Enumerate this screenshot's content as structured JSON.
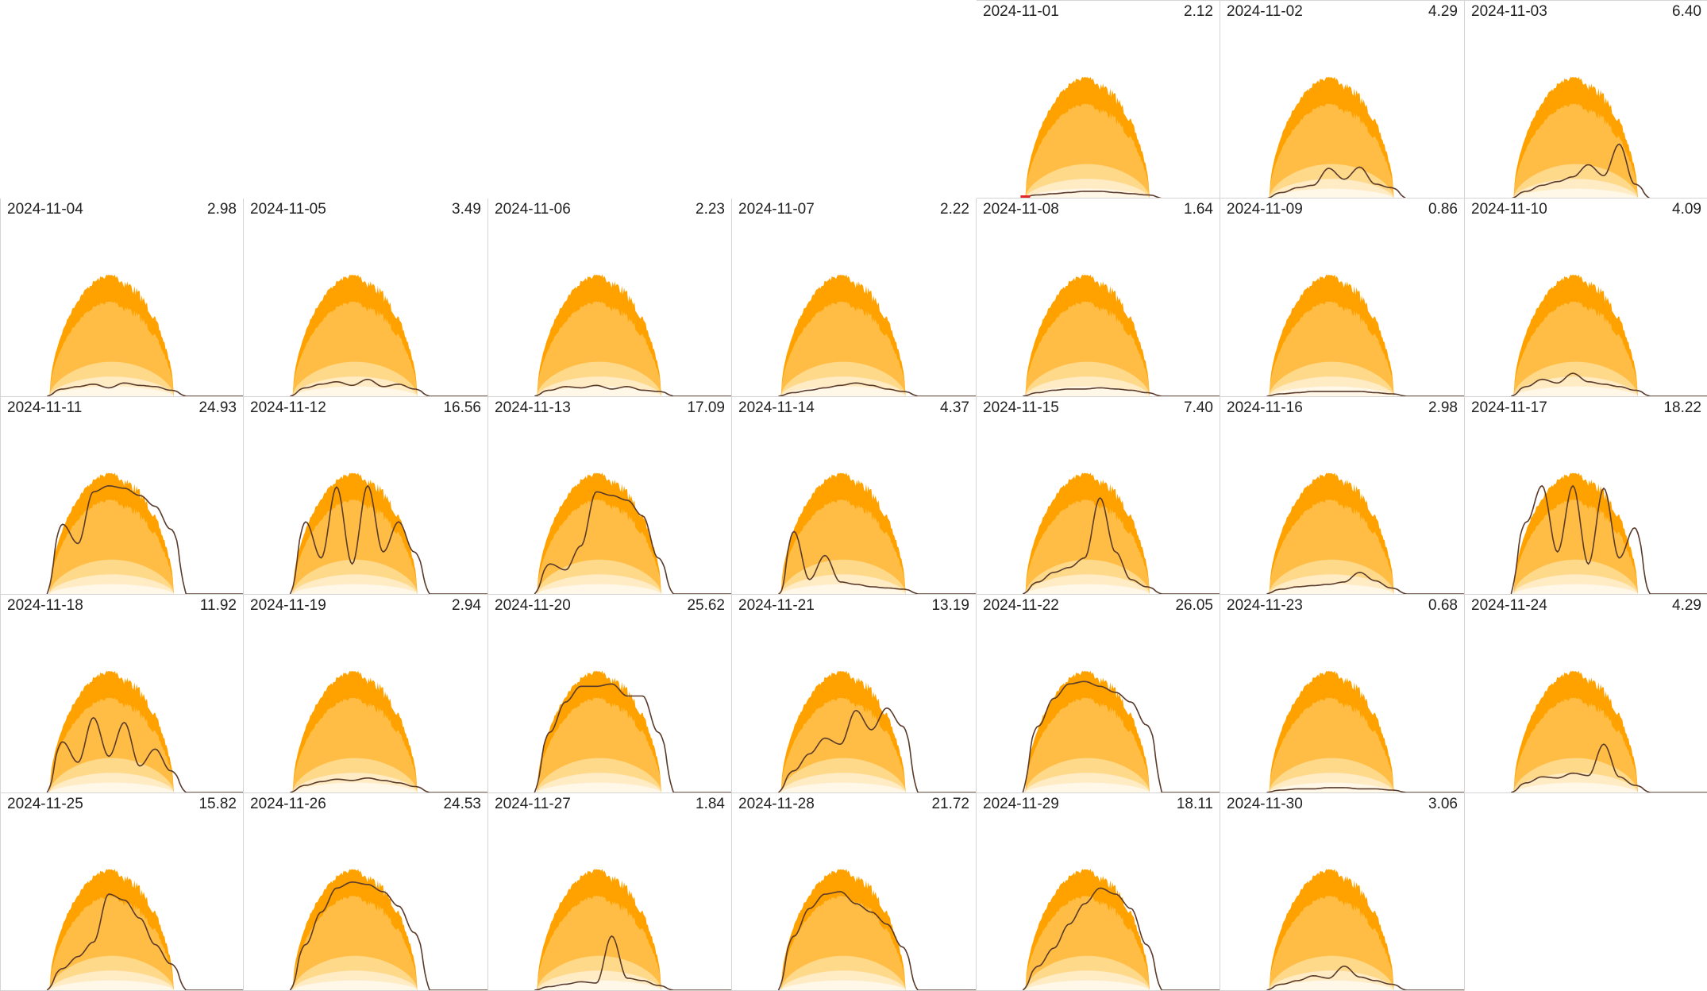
{
  "chart_data": {
    "type": "area",
    "grid": false,
    "legend": "none",
    "layout": "calendar",
    "week_start": "Monday",
    "x": "hour of day",
    "colors": {
      "max_band": "#ffa200",
      "upper_band": "#ffbd45",
      "middle_band": "#ffd98a",
      "low_band": "#ffebc4",
      "min_band": "#fff7e8",
      "actual_line": "#5a3a2a",
      "marker": "#e3262a"
    },
    "days": [
      {
        "date": "2024-11-01",
        "total": "2.12",
        "weekday": 4,
        "week": 0,
        "profile": [
          0.2,
          0.3,
          0.4,
          0.5,
          0.6,
          0.6,
          0.5,
          0.4,
          0.3,
          0.2
        ],
        "marker": true
      },
      {
        "date": "2024-11-02",
        "total": "4.29",
        "weekday": 5,
        "week": 0,
        "profile": [
          0.2,
          0.5,
          0.9,
          1.1,
          2.5,
          1.6,
          2.6,
          1.2,
          0.9,
          0.4
        ]
      },
      {
        "date": "2024-11-03",
        "total": "6.40",
        "weekday": 6,
        "week": 0,
        "profile": [
          0.2,
          0.6,
          1.1,
          1.4,
          1.8,
          2.8,
          1.9,
          4.5,
          1.2,
          0.4
        ]
      },
      {
        "date": "2024-11-04",
        "total": "2.98",
        "weekday": 0,
        "week": 1,
        "profile": [
          0.2,
          0.6,
          0.8,
          1.0,
          0.7,
          1.1,
          0.9,
          0.8,
          0.5,
          0.2
        ]
      },
      {
        "date": "2024-11-05",
        "total": "3.49",
        "weekday": 1,
        "week": 1,
        "profile": [
          0.2,
          0.7,
          1.0,
          1.2,
          0.9,
          1.4,
          0.8,
          1.0,
          0.6,
          0.2
        ]
      },
      {
        "date": "2024-11-06",
        "total": "2.23",
        "weekday": 2,
        "week": 1,
        "profile": [
          0.2,
          0.5,
          0.8,
          0.7,
          0.9,
          0.6,
          0.8,
          0.5,
          0.4,
          0.2
        ]
      },
      {
        "date": "2024-11-07",
        "total": "2.22",
        "weekday": 3,
        "week": 1,
        "profile": [
          0.1,
          0.3,
          0.5,
          0.7,
          0.9,
          1.1,
          0.9,
          0.6,
          0.4,
          0.2
        ]
      },
      {
        "date": "2024-11-08",
        "total": "1.64",
        "weekday": 4,
        "week": 1,
        "profile": [
          0.1,
          0.3,
          0.5,
          0.6,
          0.6,
          0.7,
          0.6,
          0.5,
          0.3,
          0.1
        ]
      },
      {
        "date": "2024-11-09",
        "total": "0.86",
        "weekday": 5,
        "week": 1,
        "profile": [
          0.1,
          0.2,
          0.3,
          0.4,
          0.4,
          0.4,
          0.4,
          0.3,
          0.2,
          0.1
        ]
      },
      {
        "date": "2024-11-10",
        "total": "4.09",
        "weekday": 6,
        "week": 1,
        "profile": [
          0.2,
          0.8,
          1.4,
          1.1,
          1.9,
          1.2,
          1.0,
          0.8,
          0.5,
          0.2
        ]
      },
      {
        "date": "2024-11-11",
        "total": "24.93",
        "weekday": 0,
        "week": 2,
        "profile": [
          2.0,
          5.8,
          4.2,
          8.5,
          9.0,
          8.8,
          8.2,
          7.3,
          5.4,
          2.6
        ]
      },
      {
        "date": "2024-11-12",
        "total": "16.56",
        "weekday": 1,
        "week": 2,
        "profile": [
          1.5,
          6.0,
          3.0,
          8.9,
          2.5,
          9.0,
          3.5,
          6.0,
          3.5,
          1.2
        ]
      },
      {
        "date": "2024-11-13",
        "total": "17.09",
        "weekday": 2,
        "week": 2,
        "profile": [
          0.8,
          2.5,
          2.0,
          4.0,
          8.5,
          8.2,
          7.8,
          6.5,
          3.0,
          0.8
        ]
      },
      {
        "date": "2024-11-14",
        "total": "4.37",
        "weekday": 3,
        "week": 2,
        "profile": [
          0.3,
          5.2,
          1.2,
          3.2,
          1.0,
          0.8,
          0.6,
          0.5,
          0.4,
          0.2
        ]
      },
      {
        "date": "2024-11-15",
        "total": "7.40",
        "weekday": 4,
        "week": 2,
        "profile": [
          0.3,
          1.0,
          1.8,
          2.2,
          3.0,
          8.0,
          3.5,
          1.2,
          0.6,
          0.2
        ]
      },
      {
        "date": "2024-11-16",
        "total": "2.98",
        "weekday": 5,
        "week": 2,
        "profile": [
          0.2,
          0.4,
          0.6,
          0.7,
          0.8,
          1.0,
          1.8,
          1.1,
          0.5,
          0.2
        ]
      },
      {
        "date": "2024-11-17",
        "total": "18.22",
        "weekday": 6,
        "week": 2,
        "profile": [
          2.8,
          6.0,
          9.0,
          3.5,
          9.0,
          2.5,
          8.8,
          3.0,
          5.5,
          1.2
        ]
      },
      {
        "date": "2024-11-18",
        "total": "11.92",
        "weekday": 0,
        "week": 3,
        "profile": [
          1.2,
          4.2,
          2.5,
          6.2,
          3.0,
          5.8,
          2.2,
          3.6,
          1.8,
          0.6
        ]
      },
      {
        "date": "2024-11-19",
        "total": "2.94",
        "weekday": 1,
        "week": 3,
        "profile": [
          0.2,
          0.6,
          0.9,
          1.1,
          1.0,
          1.2,
          1.0,
          0.8,
          0.5,
          0.2
        ]
      },
      {
        "date": "2024-11-20",
        "total": "25.62",
        "weekday": 2,
        "week": 3,
        "profile": [
          1.8,
          5.0,
          7.5,
          8.8,
          8.8,
          9.0,
          8.0,
          8.0,
          5.0,
          2.0
        ]
      },
      {
        "date": "2024-11-21",
        "total": "13.19",
        "weekday": 3,
        "week": 3,
        "profile": [
          0.6,
          1.8,
          3.2,
          4.5,
          4.0,
          6.8,
          5.2,
          7.0,
          5.5,
          2.0
        ]
      },
      {
        "date": "2024-11-22",
        "total": "26.05",
        "weekday": 4,
        "week": 3,
        "profile": [
          2.5,
          5.5,
          7.8,
          9.0,
          9.2,
          8.8,
          8.3,
          7.5,
          5.6,
          3.0
        ]
      },
      {
        "date": "2024-11-23",
        "total": "0.68",
        "weekday": 5,
        "week": 3,
        "profile": [
          0.1,
          0.2,
          0.3,
          0.3,
          0.4,
          0.4,
          0.3,
          0.3,
          0.2,
          0.1
        ]
      },
      {
        "date": "2024-11-24",
        "total": "4.29",
        "weekday": 6,
        "week": 3,
        "profile": [
          0.2,
          0.8,
          1.3,
          1.2,
          1.6,
          1.4,
          4.0,
          1.3,
          0.6,
          0.2
        ]
      },
      {
        "date": "2024-11-25",
        "total": "15.82",
        "weekday": 0,
        "week": 4,
        "profile": [
          0.6,
          1.8,
          2.8,
          4.0,
          8.0,
          7.5,
          6.0,
          3.8,
          2.2,
          0.8
        ]
      },
      {
        "date": "2024-11-26",
        "total": "24.53",
        "weekday": 1,
        "week": 4,
        "profile": [
          1.0,
          3.8,
          6.5,
          8.5,
          9.0,
          8.8,
          8.2,
          7.0,
          4.8,
          2.0
        ]
      },
      {
        "date": "2024-11-27",
        "total": "1.84",
        "weekday": 2,
        "week": 4,
        "profile": [
          0.1,
          0.3,
          0.5,
          0.7,
          0.6,
          4.5,
          1.0,
          0.8,
          0.4,
          0.1
        ]
      },
      {
        "date": "2024-11-28",
        "total": "21.72",
        "weekday": 3,
        "week": 4,
        "profile": [
          1.5,
          4.5,
          6.8,
          8.0,
          8.2,
          7.2,
          6.5,
          5.5,
          3.6,
          1.0
        ]
      },
      {
        "date": "2024-11-29",
        "total": "18.11",
        "weekday": 4,
        "week": 4,
        "profile": [
          0.6,
          2.0,
          3.5,
          5.5,
          7.2,
          8.5,
          8.0,
          6.8,
          3.8,
          1.2
        ]
      },
      {
        "date": "2024-11-30",
        "total": "3.06",
        "weekday": 5,
        "week": 4,
        "profile": [
          0.2,
          0.5,
          0.8,
          1.2,
          1.0,
          2.0,
          1.1,
          0.8,
          0.5,
          0.2
        ]
      }
    ]
  }
}
